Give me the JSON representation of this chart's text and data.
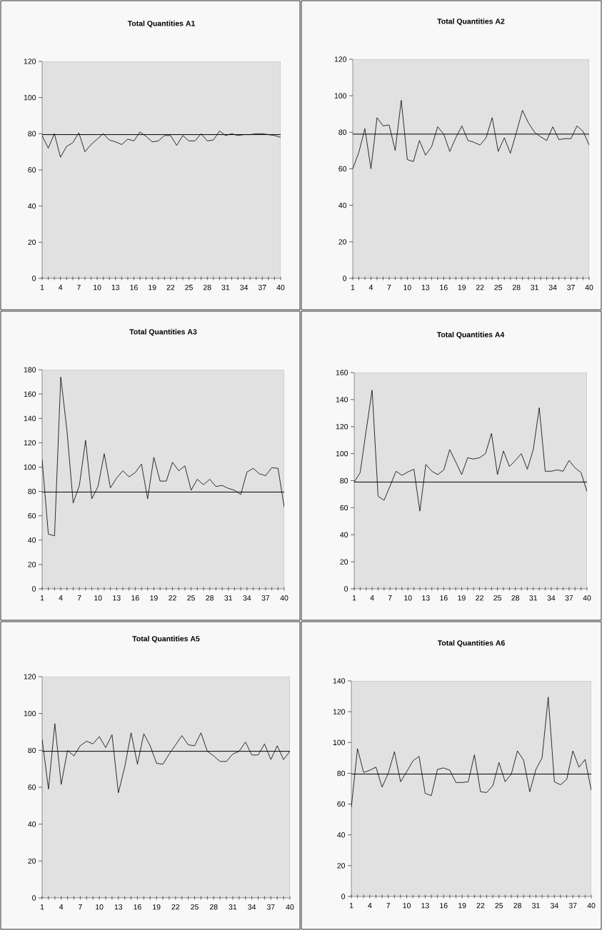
{
  "chart_data": [
    {
      "type": "line",
      "title": "Total Quantities A1",
      "categories": [
        "1",
        null,
        null,
        "4",
        null,
        null,
        "7",
        null,
        null,
        "10",
        null,
        null,
        "13",
        null,
        null,
        "16",
        null,
        null,
        "19",
        null,
        null,
        "22",
        null,
        null,
        "25",
        null,
        null,
        "28",
        null,
        null,
        "31",
        null,
        null,
        "34",
        null,
        null,
        "37",
        null,
        null,
        "40"
      ],
      "values": [
        79,
        72,
        80,
        67,
        73,
        75,
        80.5,
        70,
        74,
        77,
        80,
        76.5,
        75.5,
        74,
        77,
        76,
        81,
        78.5,
        75.5,
        76,
        79,
        79,
        73.5,
        79,
        76,
        76,
        80,
        76,
        76.5,
        81.5,
        79,
        80,
        79,
        79.5,
        79.5,
        80,
        80,
        79.5,
        79,
        78
      ],
      "color": "#000000",
      "ylim": [
        0,
        120
      ],
      "yticks": [
        0,
        20,
        40,
        60,
        80,
        100,
        120
      ],
      "ref_lines": [
        {
          "axis": "y",
          "value": 79.5,
          "color": "#000000"
        }
      ]
    },
    {
      "type": "line",
      "title": "Total Quantities A2",
      "categories": [
        "1",
        null,
        null,
        "4",
        null,
        null,
        "7",
        null,
        null,
        "10",
        null,
        null,
        "13",
        null,
        null,
        "16",
        null,
        null,
        "19",
        null,
        null,
        "22",
        null,
        null,
        "25",
        null,
        null,
        "28",
        null,
        null,
        "31",
        null,
        null,
        "34",
        null,
        null,
        "37",
        null,
        null,
        "40"
      ],
      "values": [
        60,
        69,
        82,
        60,
        88,
        83.5,
        84,
        70,
        97.5,
        65,
        64,
        75.5,
        67.5,
        72,
        83,
        79,
        69.5,
        77,
        83.5,
        75.5,
        74.5,
        73,
        77,
        88,
        69.5,
        77,
        68.5,
        80,
        92,
        85,
        80,
        77.5,
        75.5,
        83,
        76,
        76.5,
        76.5,
        83.5,
        80.5,
        73
      ],
      "color": "#000000",
      "ylim": [
        0,
        120
      ],
      "yticks": [
        0,
        20,
        40,
        60,
        80,
        100,
        120
      ],
      "ref_lines": [
        {
          "axis": "y",
          "value": 79,
          "color": "#000000"
        }
      ]
    },
    {
      "type": "line",
      "title": "Total Quantities A3",
      "categories": [
        "1",
        null,
        null,
        "4",
        null,
        null,
        "7",
        null,
        null,
        "10",
        null,
        null,
        "13",
        null,
        null,
        "16",
        null,
        null,
        "19",
        null,
        null,
        "22",
        null,
        null,
        "25",
        null,
        null,
        "28",
        null,
        null,
        "31",
        null,
        null,
        "34",
        null,
        null,
        "37",
        null,
        null,
        "40"
      ],
      "values": [
        106,
        45,
        43.5,
        174,
        130,
        70.5,
        85,
        122,
        74,
        84,
        111,
        83,
        91,
        97,
        92,
        95.5,
        102.5,
        74,
        108,
        88.5,
        88.5,
        104,
        97,
        101,
        81,
        90,
        85.5,
        90,
        84,
        85,
        82.5,
        81,
        77.5,
        96,
        99,
        94.5,
        93,
        99.5,
        99,
        67
      ],
      "color": "#000000",
      "ylim": [
        0,
        180
      ],
      "yticks": [
        0,
        20,
        40,
        60,
        80,
        100,
        120,
        140,
        160,
        180
      ],
      "ref_lines": [
        {
          "axis": "y",
          "value": 79.5,
          "color": "#000000"
        }
      ]
    },
    {
      "type": "line",
      "title": "Total Quantities A4",
      "categories": [
        "1",
        null,
        null,
        "4",
        null,
        null,
        "7",
        null,
        null,
        "10",
        null,
        null,
        "13",
        null,
        null,
        "16",
        null,
        null,
        "19",
        null,
        null,
        "22",
        null,
        null,
        "25",
        null,
        null,
        "28",
        null,
        null,
        "31",
        null,
        null,
        "34",
        null,
        null,
        "37",
        null,
        null,
        "40"
      ],
      "values": [
        79,
        86,
        117,
        147,
        68.5,
        65.5,
        76,
        87,
        84,
        86.5,
        88.5,
        57.5,
        92,
        87,
        84.5,
        88,
        103,
        94,
        84.5,
        97,
        96,
        97,
        100,
        115,
        84.5,
        102,
        90.5,
        95,
        100,
        88.5,
        103,
        134,
        87,
        87,
        88,
        87,
        95,
        89.5,
        86,
        72
      ],
      "color": "#000000",
      "ylim": [
        0,
        160
      ],
      "yticks": [
        0,
        20,
        40,
        60,
        80,
        100,
        120,
        140,
        160
      ],
      "ref_lines": [
        {
          "axis": "y",
          "value": 79,
          "color": "#000000"
        }
      ]
    },
    {
      "type": "line",
      "title": "Total Quantities A5",
      "categories": [
        "1",
        null,
        null,
        "4",
        null,
        null,
        "7",
        null,
        null,
        "10",
        null,
        null,
        "13",
        null,
        null,
        "16",
        null,
        null,
        "19",
        null,
        null,
        "22",
        null,
        null,
        "25",
        null,
        null,
        "28",
        null,
        null,
        "31",
        null,
        null,
        "34",
        null,
        null,
        "37",
        null,
        null,
        "40"
      ],
      "values": [
        86,
        59,
        94.5,
        61.5,
        80,
        77,
        82.5,
        85,
        83.5,
        87.5,
        81.5,
        88.5,
        57,
        71,
        89.5,
        72.5,
        89,
        82.5,
        73,
        72.5,
        78,
        83,
        88,
        83,
        82.5,
        89.5,
        79.5,
        77,
        74,
        74,
        78,
        79.5,
        84.5,
        77.5,
        77.5,
        83.5,
        75,
        82.5,
        75,
        79.5
      ],
      "color": "#000000",
      "ylim": [
        0,
        120
      ],
      "yticks": [
        0,
        20,
        40,
        60,
        80,
        100,
        120
      ],
      "ref_lines": [
        {
          "axis": "y",
          "value": 79.5,
          "color": "#000000"
        }
      ]
    },
    {
      "type": "line",
      "title": "Total Quantities A6",
      "categories": [
        "1",
        null,
        null,
        "4",
        null,
        null,
        "7",
        null,
        null,
        "10",
        null,
        null,
        "13",
        null,
        null,
        "16",
        null,
        null,
        "19",
        null,
        null,
        "22",
        null,
        null,
        "25",
        null,
        null,
        "28",
        null,
        null,
        "31",
        null,
        null,
        "34",
        null,
        null,
        "37",
        null,
        null,
        "40"
      ],
      "values": [
        58,
        96,
        80.5,
        82,
        84,
        71,
        80,
        94,
        74.5,
        81,
        88,
        91,
        67,
        65.5,
        82.5,
        83.5,
        82,
        74,
        74,
        74.5,
        92,
        68,
        67.5,
        72,
        87,
        74.5,
        79.5,
        94.5,
        88.5,
        68,
        82.5,
        90,
        129.5,
        74.5,
        72.5,
        76,
        94.5,
        84,
        89,
        69
      ],
      "color": "#000000",
      "ylim": [
        0,
        140
      ],
      "yticks": [
        0,
        20,
        40,
        60,
        80,
        100,
        120,
        140
      ],
      "ref_lines": [
        {
          "axis": "y",
          "value": 79.5,
          "color": "#000000"
        }
      ]
    }
  ]
}
